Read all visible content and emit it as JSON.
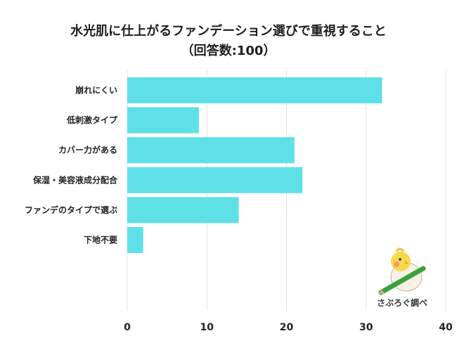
{
  "header": {
    "title_line1": "水光肌に仕上がるファンデーション選びで重視すること",
    "title_line2": "（回答数:100）"
  },
  "logo": {
    "text": "さぶろぐ調べ",
    "icon": "bird-with-pencil-icon"
  },
  "chart_data": {
    "type": "bar",
    "orientation": "horizontal",
    "categories": [
      "崩れにくい",
      "低刺激タイプ",
      "カバー力がある",
      "保湿・美容液成分配合",
      "ファンデのタイプで選ぶ",
      "下地不要"
    ],
    "values": [
      32,
      9,
      21,
      22,
      14,
      2
    ],
    "xticks": [
      "0",
      "10",
      "20",
      "30",
      "40"
    ],
    "xlim": [
      0,
      40
    ],
    "grid": true,
    "bar_color": "#5ee0e6",
    "grid_color": "#e3e3e3"
  }
}
